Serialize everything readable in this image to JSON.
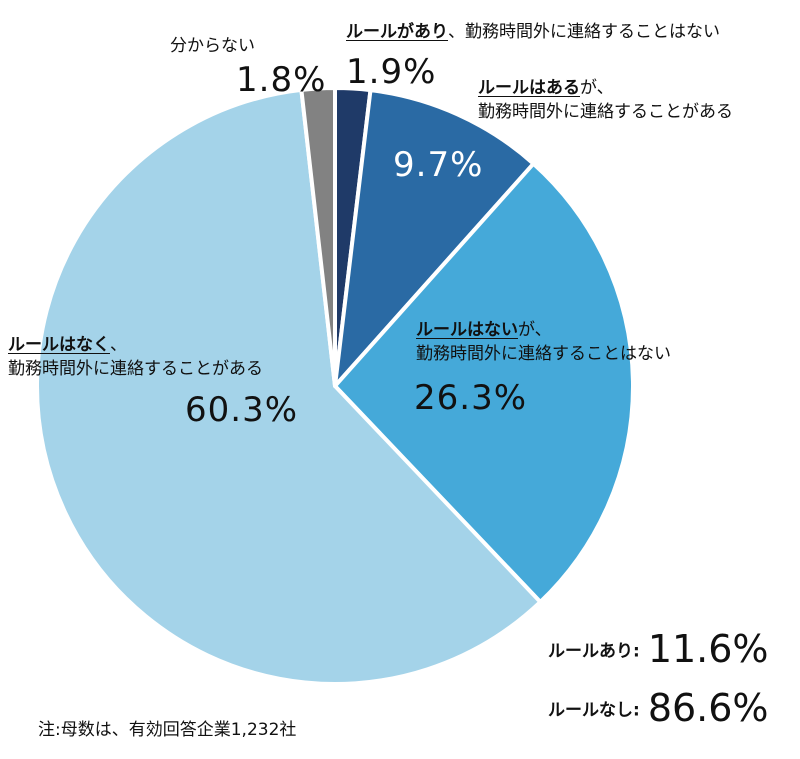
{
  "chart_data": {
    "type": "pie",
    "start": "12 o'clock, clockwise",
    "slices": [
      {
        "label_em": "ルールがあり",
        "label_rest": "、勤務時間外に連絡することはない",
        "value": 1.9,
        "display": "1.9%",
        "color": "#1f3a68"
      },
      {
        "label_em": "ルールはある",
        "label_rest": "が、",
        "label_line2": "勤務時間外に連絡することがある",
        "value": 9.7,
        "display": "9.7%",
        "color": "#2a6aa4"
      },
      {
        "label_em": "ルールはない",
        "label_rest": "が、",
        "label_line2": "勤務時間外に連絡することはない",
        "value": 26.3,
        "display": "26.3%",
        "color": "#45a9d9"
      },
      {
        "label_em": "ルールはなく",
        "label_rest": "、",
        "label_line2": "勤務時間外に連絡することがある",
        "value": 60.3,
        "display": "60.3%",
        "color": "#a4d3e9"
      },
      {
        "label_em": "",
        "label_rest": "分からない",
        "value": 1.8,
        "display": "1.8%",
        "color": "#828282"
      }
    ],
    "summary": [
      {
        "label": "ルールあり:",
        "value": "11.6%"
      },
      {
        "label": "ルールなし:",
        "value": "86.6%"
      }
    ],
    "note": "注:母数は、有効回答企業1,232社"
  }
}
